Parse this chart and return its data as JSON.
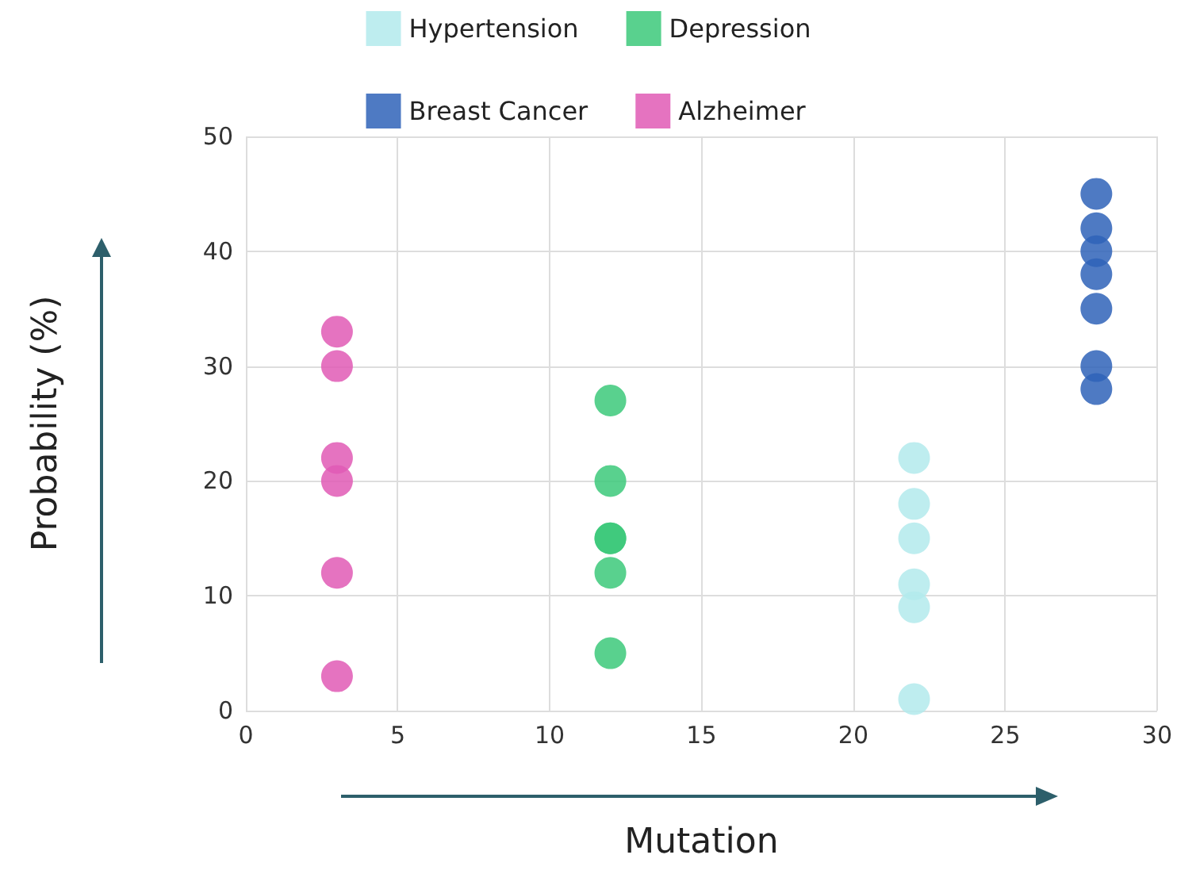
{
  "chart_data": {
    "type": "scatter",
    "xlabel": "Mutation",
    "ylabel": "Probability (%)",
    "series": [
      {
        "name": "Hypertension",
        "color": "#b3eaec",
        "x": [
          22,
          22,
          22,
          22,
          22,
          22
        ],
        "values": [
          22,
          18,
          15,
          11,
          9,
          1
        ]
      },
      {
        "name": "Depression",
        "color": "#3cc97a",
        "x": [
          12,
          12,
          12,
          12,
          12,
          12
        ],
        "values": [
          27,
          20,
          15,
          15,
          12,
          5
        ]
      },
      {
        "name": "Breast Cancer",
        "color": "#2f63b8",
        "x": [
          28,
          28,
          28,
          28,
          28,
          28,
          28
        ],
        "values": [
          45,
          42,
          40,
          38,
          35,
          30,
          28
        ]
      },
      {
        "name": "Alzheimer",
        "color": "#e05bb5",
        "x": [
          3,
          3,
          3,
          3,
          3,
          3
        ],
        "values": [
          33,
          30,
          22,
          20,
          12,
          3
        ]
      }
    ],
    "xlim": [
      0,
      30
    ],
    "xticks": [
      0,
      5,
      10,
      15,
      20,
      25,
      30
    ],
    "ylim": [
      0,
      50
    ],
    "yticks": [
      0,
      10,
      20,
      30,
      40,
      50
    ],
    "grid": true,
    "legend": "top",
    "marker": "circle"
  }
}
